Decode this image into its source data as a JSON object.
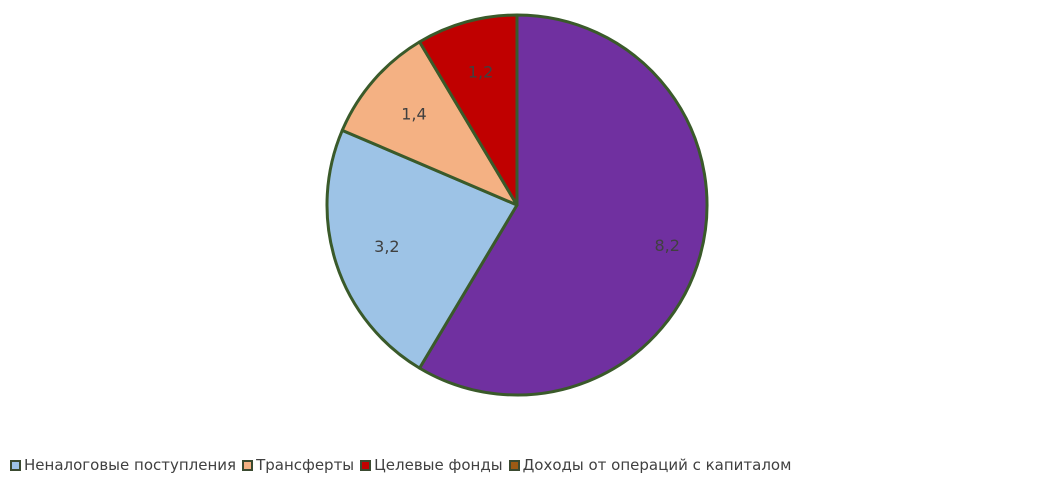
{
  "chart_data": {
    "type": "pie",
    "slices": [
      {
        "label": "8,2",
        "value": 8.2,
        "color": "#7030a0"
      },
      {
        "label": "3,2",
        "value": 3.2,
        "color": "#9dc3e6"
      },
      {
        "label": "1,4",
        "value": 1.4,
        "color": "#f4b183"
      },
      {
        "label": "1,2",
        "value": 1.2,
        "color": "#c00000"
      }
    ],
    "slice_border_color": "#3a5a2a",
    "legend_position": "bottom",
    "legend": [
      {
        "name": "Неналоговые поступления",
        "color": "#9dc3e6"
      },
      {
        "name": "Трансферты",
        "color": "#f4b183"
      },
      {
        "name": "Целевые фонды",
        "color": "#c00000"
      },
      {
        "name": "Доходы от операций с капиталом",
        "color": "#9c5a14"
      }
    ]
  }
}
